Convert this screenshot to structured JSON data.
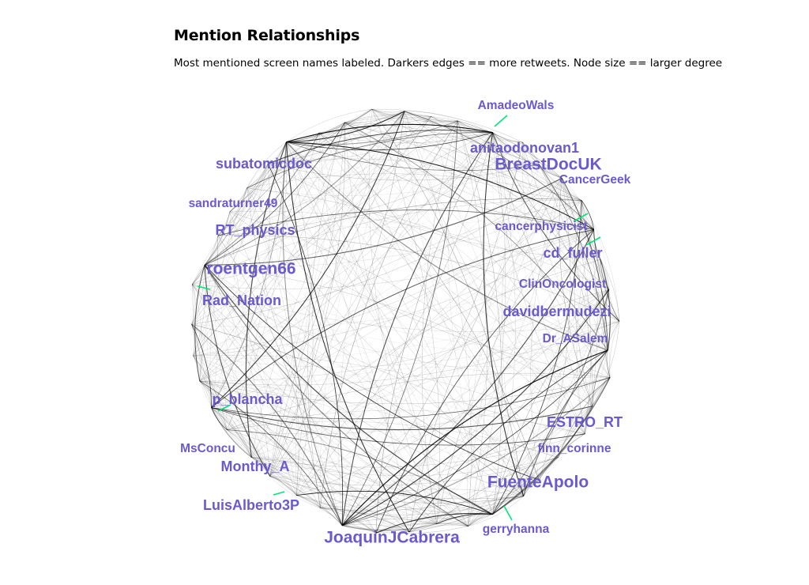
{
  "title": "Mention Relationships",
  "subtitle": "Most mentioned screen names labeled. Darkers edges == more retweets. Node size == larger degree",
  "colors": {
    "label": "#6a5acd",
    "edge": "#000000",
    "highlight_edge": "#00e676"
  },
  "labels": [
    {
      "text": "AmadeoWals",
      "size": "small"
    },
    {
      "text": "anitaodonovan1",
      "size": "medium"
    },
    {
      "text": "BreastDocUK",
      "size": "large"
    },
    {
      "text": "CancerGeek",
      "size": "small"
    },
    {
      "text": "cancerphysicist",
      "size": "small"
    },
    {
      "text": "cd_fuller",
      "size": "medium"
    },
    {
      "text": "ClinOncologist",
      "size": "small"
    },
    {
      "text": "davidbermudezi",
      "size": "medium"
    },
    {
      "text": "Dr_ASalem",
      "size": "small"
    },
    {
      "text": "ESTRO_RT",
      "size": "medium"
    },
    {
      "text": "finn_corinne",
      "size": "small"
    },
    {
      "text": "FuenteApolo",
      "size": "large"
    },
    {
      "text": "gerryhanna",
      "size": "small"
    },
    {
      "text": "JoaquinJCabrera",
      "size": "large"
    },
    {
      "text": "LuisAlberto3P",
      "size": "medium"
    },
    {
      "text": "Monthy_A",
      "size": "medium"
    },
    {
      "text": "MsConcu",
      "size": "small"
    },
    {
      "text": "p_blancha",
      "size": "medium"
    },
    {
      "text": "Rad_Nation",
      "size": "medium"
    },
    {
      "text": "roentgen66",
      "size": "large"
    },
    {
      "text": "RT_physics",
      "size": "medium"
    },
    {
      "text": "sandraturner49",
      "size": "small"
    },
    {
      "text": "subatomicdoc",
      "size": "medium"
    }
  ]
}
